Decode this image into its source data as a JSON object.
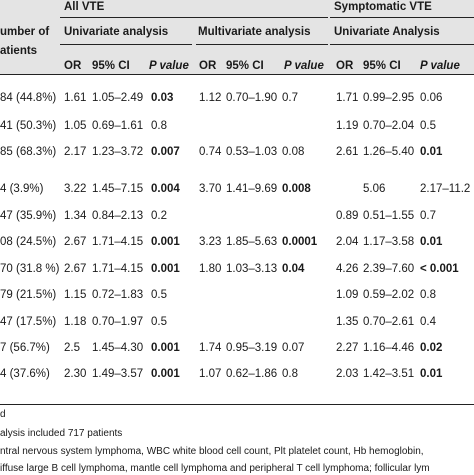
{
  "header": {
    "group_all": "All VTE",
    "group_symptomatic": "Symptomatic VTE",
    "number_of_line1": "umber of",
    "number_of_line2": "atients",
    "univariate_all": "Univariate analysis",
    "multivariate_all": "Multivariate analysis",
    "univariate_symptomatic": "Univariate Analysis",
    "col_or": "OR",
    "col_ci": "95% CI",
    "col_p": "P value"
  },
  "rows": [
    {
      "n": "84 (44.8%)",
      "u_or": "1.61",
      "u_ci": "1.05–2.49",
      "u_p": "0.03",
      "m_or": "1.12",
      "m_ci": "0.70–1.90",
      "m_p": "0.7",
      "s_or": "1.71",
      "s_ci": "0.99–2.95",
      "s_p": "0.06"
    },
    {
      "n": "41 (50.3%)",
      "u_or": "1.05",
      "u_ci": "0.69–1.61",
      "u_p": "0.8",
      "m_or": "",
      "m_ci": "",
      "m_p": "",
      "s_or": "1.19",
      "s_ci": "0.70–2.04",
      "s_p": "0.5"
    },
    {
      "n": "85 (68.3%)",
      "u_or": "2.17",
      "u_ci": "1.23–3.72",
      "u_p": "0.007",
      "m_or": "0.74",
      "m_ci": "0.53–1.03",
      "m_p": "0.08",
      "s_or": "2.61",
      "s_ci": "1.26–5.40",
      "s_p": "0.01"
    },
    {
      "n": "4 (3.9%)",
      "u_or": "3.22",
      "u_ci": "1.45–7.15",
      "u_p": "0.004",
      "m_or": "3.70",
      "m_ci": "1.41–9.69",
      "m_p": "0.008",
      "s_or": "",
      "s_ci": "5.06",
      "s_p": "2.17–11.2"
    },
    {
      "n": "47 (35.9%)",
      "u_or": "1.34",
      "u_ci": "0.84–2.13",
      "u_p": "0.2",
      "m_or": "",
      "m_ci": "",
      "m_p": "",
      "s_or": "0.89",
      "s_ci": "0.51–1.55",
      "s_p": "0.7"
    },
    {
      "n": "08 (24.5%)",
      "u_or": "2.67",
      "u_ci": "1.71–4.15",
      "u_p": "0.001",
      "m_or": "3.23",
      "m_ci": "1.85–5.63",
      "m_p": "0.0001",
      "s_or": "2.04",
      "s_ci": "1.17–3.58",
      "s_p": "0.01"
    },
    {
      "n": "70 (31.8 %)",
      "u_or": "2.67",
      "u_ci": "1.71–4.15",
      "u_p": "0.001",
      "m_or": "1.80",
      "m_ci": "1.03–3.13",
      "m_p": "0.04",
      "s_or": "4.26",
      "s_ci": "2.39–7.60",
      "s_p": "< 0.001"
    },
    {
      "n": "79 (21.5%)",
      "u_or": "1.15",
      "u_ci": "0.72–1.83",
      "u_p": "0.5",
      "m_or": "",
      "m_ci": "",
      "m_p": "",
      "s_or": "1.09",
      "s_ci": "0.59–2.02",
      "s_p": "0.8"
    },
    {
      "n": "47 (17.5%)",
      "u_or": "1.18",
      "u_ci": "0.70–1.97",
      "u_p": "0.5",
      "m_or": "",
      "m_ci": "",
      "m_p": "",
      "s_or": "1.35",
      "s_ci": "0.70–2.61",
      "s_p": "0.4"
    },
    {
      "n": "7 (56.7%)",
      "u_or": "2.5",
      "u_ci": "1.45–4.30",
      "u_p": "0.001",
      "m_or": "1.74",
      "m_ci": "0.95–3.19",
      "m_p": "0.07",
      "s_or": "2.27",
      "s_ci": "1.16–4.46",
      "s_p": "0.02"
    },
    {
      "n": "4 (37.6%)",
      "u_or": "2.30",
      "u_ci": "1.49–3.57",
      "u_p": "0.001",
      "m_or": "1.07",
      "m_ci": "0.62–1.86",
      "m_p": "0.8",
      "s_or": "2.03",
      "s_ci": "1.42–3.51",
      "s_p": "0.01"
    }
  ],
  "bold_cells": {
    "u_p": [
      0,
      2,
      3,
      5,
      6,
      9,
      10
    ],
    "m_p": [
      3,
      5,
      6
    ],
    "s_p": [
      2,
      5,
      6,
      9,
      10
    ]
  },
  "footnotes": [
    "d",
    "alysis included 717 patients",
    "ntral nervous system lymphoma, WBC white blood cell count, Plt platelet count, Hb hemoglobin,",
    "iffuse large B cell lymphoma, mantle cell lymphoma and peripheral T cell lymphoma; follicular lym"
  ]
}
